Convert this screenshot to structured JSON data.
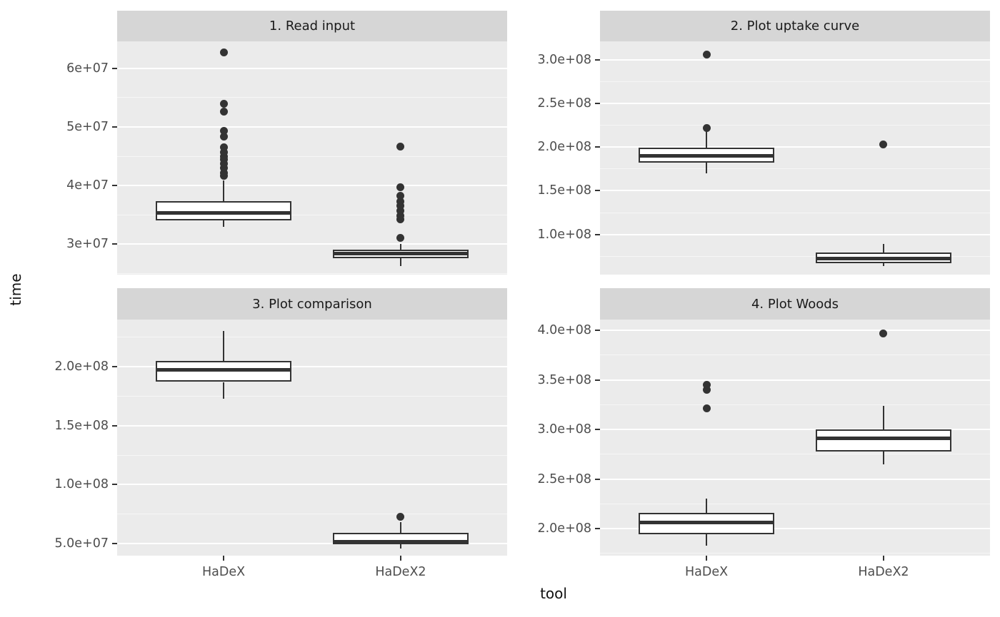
{
  "figure_title": "",
  "axes": {
    "x_title": "tool",
    "y_title": "time"
  },
  "colors": {
    "background": "#ffffff",
    "panel_bg": "#ebebeb",
    "strip_bg": "#d6d6d6",
    "grid_major": "#ffffff",
    "grid_minor": "rgba(255,255,255,0.55)",
    "box_stroke": "#333333",
    "box_fill": "#ffffff",
    "outlier": "#333333",
    "tick_text": "#4d4d4d",
    "strip_text": "#1a1a1a",
    "axis_title_text": "#111111"
  },
  "chart_data": {
    "type": "boxplot",
    "faceting": "2x2 facet grid by task, free y scales",
    "categories": [
      "HaDeX",
      "HaDeX2"
    ],
    "xlabel": "tool",
    "ylabel": "time",
    "legend": false,
    "grid": true,
    "facets": [
      {
        "title": "1. Read input",
        "row": 0,
        "col": 0,
        "ylim": [
          24800000,
          64600000
        ],
        "yticks": [
          {
            "value": 30000000,
            "label": "3e+07"
          },
          {
            "value": 40000000,
            "label": "4e+07"
          },
          {
            "value": 50000000,
            "label": "5e+07"
          },
          {
            "value": 60000000,
            "label": "6e+07"
          }
        ],
        "boxes": [
          {
            "category": "HaDeX",
            "whisker_low": 33000000,
            "q1": 34100000,
            "median": 35300000,
            "q3": 37300000,
            "whisker_high": 40900000,
            "outliers": [
              41600000,
              42200000,
              43000000,
              43700000,
              44400000,
              45000000,
              45700000,
              46500000,
              48300000,
              49300000,
              52600000,
              53900000,
              62700000
            ]
          },
          {
            "category": "HaDeX2",
            "whisker_low": 26200000,
            "q1": 27600000,
            "median": 28400000,
            "q3": 29100000,
            "whisker_high": 30000000,
            "outliers": [
              31100000,
              34200000,
              34900000,
              35700000,
              36500000,
              37300000,
              38200000,
              39700000,
              46600000
            ]
          }
        ]
      },
      {
        "title": "2. Plot uptake curve",
        "row": 0,
        "col": 1,
        "ylim": [
          54000000,
          321000000
        ],
        "yticks": [
          {
            "value": 100000000,
            "label": "1.0e+08"
          },
          {
            "value": 150000000,
            "label": "1.5e+08"
          },
          {
            "value": 200000000,
            "label": "2.0e+08"
          },
          {
            "value": 250000000,
            "label": "2.5e+08"
          },
          {
            "value": 300000000,
            "label": "3.0e+08"
          }
        ],
        "boxes": [
          {
            "category": "HaDeX",
            "whisker_low": 170000000,
            "q1": 182000000,
            "median": 190000000,
            "q3": 199000000,
            "whisker_high": 219000000,
            "outliers": [
              222000000,
              306000000
            ]
          },
          {
            "category": "HaDeX2",
            "whisker_low": 64000000,
            "q1": 67000000,
            "median": 72000000,
            "q3": 79000000,
            "whisker_high": 89000000,
            "outliers": [
              203000000
            ]
          }
        ]
      },
      {
        "title": "3. Plot comparison",
        "row": 1,
        "col": 0,
        "ylim": [
          39800000,
          239900000
        ],
        "yticks": [
          {
            "value": 50000000,
            "label": "5.0e+07"
          },
          {
            "value": 100000000,
            "label": "1.0e+08"
          },
          {
            "value": 150000000,
            "label": "1.5e+08"
          },
          {
            "value": 200000000,
            "label": "2.0e+08"
          }
        ],
        "boxes": [
          {
            "category": "HaDeX",
            "whisker_low": 173000000,
            "q1": 187000000,
            "median": 197000000,
            "q3": 205000000,
            "whisker_high": 230000000,
            "outliers": []
          },
          {
            "category": "HaDeX2",
            "whisker_low": 46000000,
            "q1": 49500000,
            "median": 51500000,
            "q3": 59000000,
            "whisker_high": 68000000,
            "outliers": [
              73000000
            ]
          }
        ]
      },
      {
        "title": "4. Plot Woods",
        "row": 1,
        "col": 1,
        "ylim": [
          172700000,
          410800000
        ],
        "yticks": [
          {
            "value": 200000000,
            "label": "2.0e+08"
          },
          {
            "value": 250000000,
            "label": "2.5e+08"
          },
          {
            "value": 300000000,
            "label": "3.0e+08"
          },
          {
            "value": 350000000,
            "label": "3.5e+08"
          },
          {
            "value": 400000000,
            "label": "4.0e+08"
          }
        ],
        "boxes": [
          {
            "category": "HaDeX",
            "whisker_low": 183000000,
            "q1": 194000000,
            "median": 206000000,
            "q3": 216000000,
            "whisker_high": 230000000,
            "outliers": [
              321000000,
              340000000,
              345000000
            ]
          },
          {
            "category": "HaDeX2",
            "whisker_low": 265000000,
            "q1": 278000000,
            "median": 291000000,
            "q3": 300000000,
            "whisker_high": 324000000,
            "outliers": [
              397000000
            ]
          }
        ]
      }
    ]
  }
}
